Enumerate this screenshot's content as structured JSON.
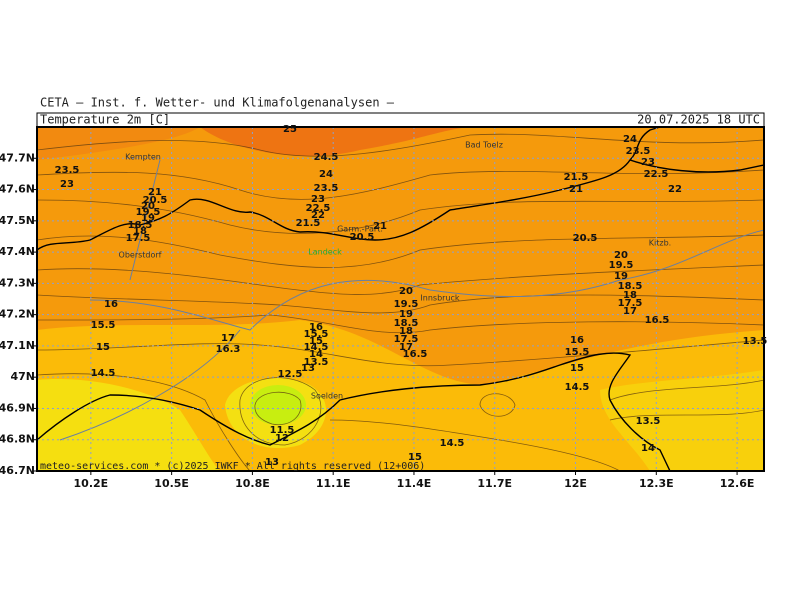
{
  "header": {
    "institute": "CETA – Inst. f. Wetter- und Klimafolgenanalysen –",
    "parameter": "Temperature 2m [C]",
    "valid_time": "20.07.2025 18 UTC"
  },
  "footer": "meteo-services.com * (c)2025 IWKF * All rights reserved (12+006)",
  "map": {
    "xlim": [
      10.0,
      12.7
    ],
    "ylim": [
      46.7,
      47.8
    ],
    "lon_ticks": [
      {
        "value": 10.2,
        "label": "10.2E"
      },
      {
        "value": 10.5,
        "label": "10.5E"
      },
      {
        "value": 10.8,
        "label": "10.8E"
      },
      {
        "value": 11.1,
        "label": "11.1E"
      },
      {
        "value": 11.4,
        "label": "11.4E"
      },
      {
        "value": 11.7,
        "label": "11.7E"
      },
      {
        "value": 12.0,
        "label": "12E"
      },
      {
        "value": 12.3,
        "label": "12.3E"
      },
      {
        "value": 12.6,
        "label": "12.6E"
      }
    ],
    "lat_ticks": [
      {
        "value": 47.7,
        "label": "47.7N"
      },
      {
        "value": 47.6,
        "label": "47.6N"
      },
      {
        "value": 47.5,
        "label": "47.5N"
      },
      {
        "value": 47.4,
        "label": "47.4N"
      },
      {
        "value": 47.3,
        "label": "47.3N"
      },
      {
        "value": 47.2,
        "label": "47.2N"
      },
      {
        "value": 47.1,
        "label": "47.1N"
      },
      {
        "value": 47.0,
        "label": "47N"
      },
      {
        "value": 46.9,
        "label": "46.9N"
      },
      {
        "value": 46.8,
        "label": "46.8N"
      },
      {
        "value": 46.7,
        "label": "46.7N"
      }
    ],
    "places": [
      "Kempten",
      "Bad Toelz",
      "Garm.-Part.",
      "Oberstdorf",
      "Innsbruck",
      "Kitzb.",
      "Soelden",
      "Landeck"
    ],
    "contour_labels": [
      "25",
      "24.5",
      "24",
      "23.5",
      "23",
      "22.5",
      "22",
      "21.5",
      "21",
      "20.5",
      "23.5",
      "23",
      "21",
      "20.5",
      "20",
      "19.5",
      "19",
      "18.5",
      "18",
      "17.5",
      "24",
      "23.5",
      "23",
      "22.5",
      "22",
      "21.5",
      "21",
      "20.5",
      "20",
      "19.5",
      "19",
      "18.5",
      "18",
      "17.5",
      "17",
      "16.5",
      "13.5",
      "20",
      "19.5",
      "19",
      "18.5",
      "18",
      "17.5",
      "17",
      "16.5",
      "16",
      "15.5",
      "15",
      "14.5",
      "17",
      "16.3",
      "16",
      "15.5",
      "15",
      "14.5",
      "14",
      "13.5",
      "13",
      "12.5",
      "11.5",
      "12",
      "13",
      "16",
      "15.5",
      "15",
      "14.5",
      "14.5",
      "15",
      "13.5",
      "14"
    ]
  }
}
